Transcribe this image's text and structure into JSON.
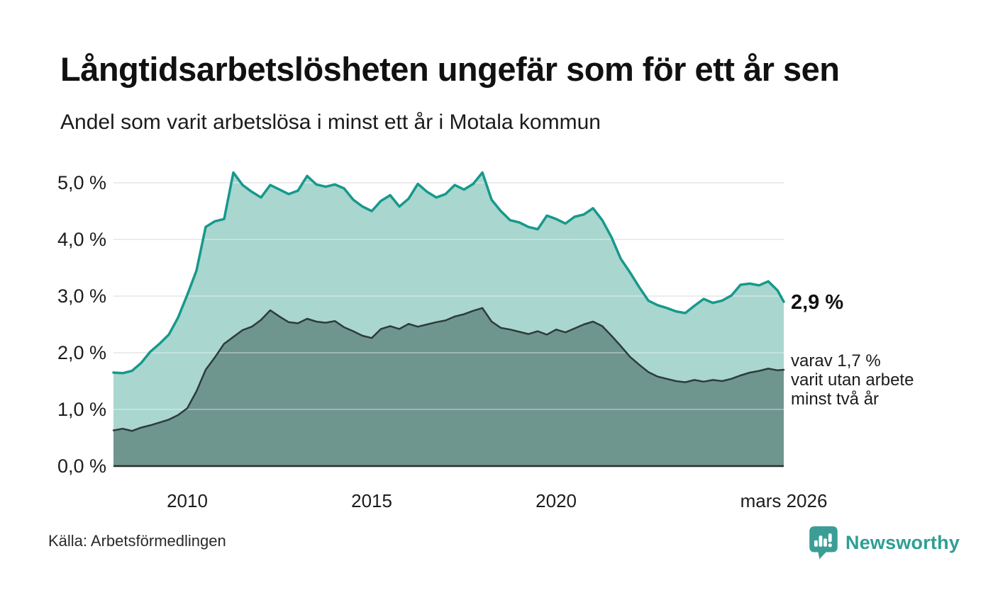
{
  "header": {
    "title": "Långtidsarbetslösheten ungefär som för ett år sen",
    "subtitle": "Andel som varit arbetslösa i minst ett år i Motala kommun"
  },
  "chart_data": {
    "type": "area",
    "title": "Långtidsarbetslösheten ungefär som för ett år sen",
    "subtitle": "Andel som varit arbetslösa i minst ett år i Motala kommun",
    "xlim": [
      2008,
      2026.17
    ],
    "ylim": [
      0,
      5.3
    ],
    "grid": "horizontal",
    "legend_position": "none",
    "x": [
      2008,
      2008.25,
      2008.5,
      2008.75,
      2009,
      2009.25,
      2009.5,
      2009.75,
      2010,
      2010.25,
      2010.5,
      2010.75,
      2011,
      2011.25,
      2011.5,
      2011.75,
      2012,
      2012.25,
      2012.5,
      2012.75,
      2013,
      2013.25,
      2013.5,
      2013.75,
      2014,
      2014.25,
      2014.5,
      2014.75,
      2015,
      2015.25,
      2015.5,
      2015.75,
      2016,
      2016.25,
      2016.5,
      2016.75,
      2017,
      2017.25,
      2017.5,
      2017.75,
      2018,
      2018.25,
      2018.5,
      2018.75,
      2019,
      2019.25,
      2019.5,
      2019.75,
      2020,
      2020.25,
      2020.5,
      2020.75,
      2021,
      2021.25,
      2021.5,
      2021.75,
      2022,
      2022.25,
      2022.5,
      2022.75,
      2023,
      2023.25,
      2023.5,
      2023.75,
      2024,
      2024.25,
      2024.5,
      2024.75,
      2025,
      2025.25,
      2025.5,
      2025.75,
      2026,
      2026.17
    ],
    "series": [
      {
        "name": "Andel som varit arbetslösa i minst ett år",
        "line_color": "#16998c",
        "fill_color": "#a9d6ce",
        "line_width": 3.5,
        "values": [
          1.65,
          1.64,
          1.68,
          1.82,
          2.02,
          2.16,
          2.32,
          2.62,
          3.02,
          3.45,
          4.22,
          4.32,
          4.36,
          5.18,
          4.96,
          4.84,
          4.74,
          4.96,
          4.88,
          4.8,
          4.86,
          5.12,
          4.97,
          4.93,
          4.97,
          4.9,
          4.7,
          4.58,
          4.5,
          4.68,
          4.78,
          4.58,
          4.72,
          4.98,
          4.84,
          4.74,
          4.8,
          4.96,
          4.88,
          4.98,
          5.18,
          4.7,
          4.5,
          4.34,
          4.3,
          4.22,
          4.18,
          4.42,
          4.36,
          4.28,
          4.4,
          4.44,
          4.55,
          4.34,
          4.04,
          3.66,
          3.42,
          3.16,
          2.92,
          2.84,
          2.79,
          2.73,
          2.7,
          2.83,
          2.95,
          2.88,
          2.92,
          3.01,
          3.2,
          3.22,
          3.19,
          3.26,
          3.1,
          2.9
        ]
      },
      {
        "name": "varav varit utan arbete minst två år",
        "line_color": "#2d3c3a",
        "fill_color": "#6f958f",
        "line_width": 2.5,
        "values": [
          0.63,
          0.66,
          0.62,
          0.68,
          0.72,
          0.77,
          0.82,
          0.9,
          1.02,
          1.32,
          1.7,
          1.92,
          2.16,
          2.28,
          2.4,
          2.46,
          2.58,
          2.75,
          2.64,
          2.54,
          2.52,
          2.6,
          2.55,
          2.53,
          2.56,
          2.45,
          2.38,
          2.3,
          2.26,
          2.42,
          2.47,
          2.42,
          2.51,
          2.46,
          2.5,
          2.54,
          2.57,
          2.64,
          2.68,
          2.74,
          2.79,
          2.55,
          2.44,
          2.41,
          2.37,
          2.33,
          2.38,
          2.32,
          2.41,
          2.36,
          2.43,
          2.5,
          2.55,
          2.47,
          2.3,
          2.12,
          1.93,
          1.79,
          1.66,
          1.58,
          1.54,
          1.5,
          1.48,
          1.52,
          1.49,
          1.52,
          1.5,
          1.54,
          1.6,
          1.65,
          1.68,
          1.72,
          1.69,
          1.7
        ]
      }
    ],
    "y_ticks": [
      {
        "value": 5,
        "label": "5,0 %"
      },
      {
        "value": 4,
        "label": "4,0 %"
      },
      {
        "value": 3,
        "label": "3,0 %"
      },
      {
        "value": 2,
        "label": "2,0 %"
      },
      {
        "value": 1,
        "label": "1,0 %"
      },
      {
        "value": 0,
        "label": "0,0 %"
      }
    ],
    "x_ticks": [
      {
        "value": 2010,
        "label": "2010"
      },
      {
        "value": 2015,
        "label": "2015"
      },
      {
        "value": 2020,
        "label": "2020"
      },
      {
        "value": 2026.17,
        "label": "mars 2026"
      }
    ],
    "annotations": [
      {
        "text": "2,9 %",
        "value": 2.9,
        "bold": true
      },
      {
        "lines": [
          "varav 1,7 %",
          "varit utan arbete",
          "minst två år"
        ],
        "value": 1.7,
        "bold": false
      }
    ],
    "colors": {
      "grid": "#e3e3e6",
      "axis": "#2c2c2c",
      "background": "#ffffff"
    }
  },
  "footer": {
    "source": "Källa: Arbetsförmedlingen",
    "brand": "Newsworthy",
    "brand_color": "#2f9e94",
    "logo_color": "#3b9e96"
  }
}
